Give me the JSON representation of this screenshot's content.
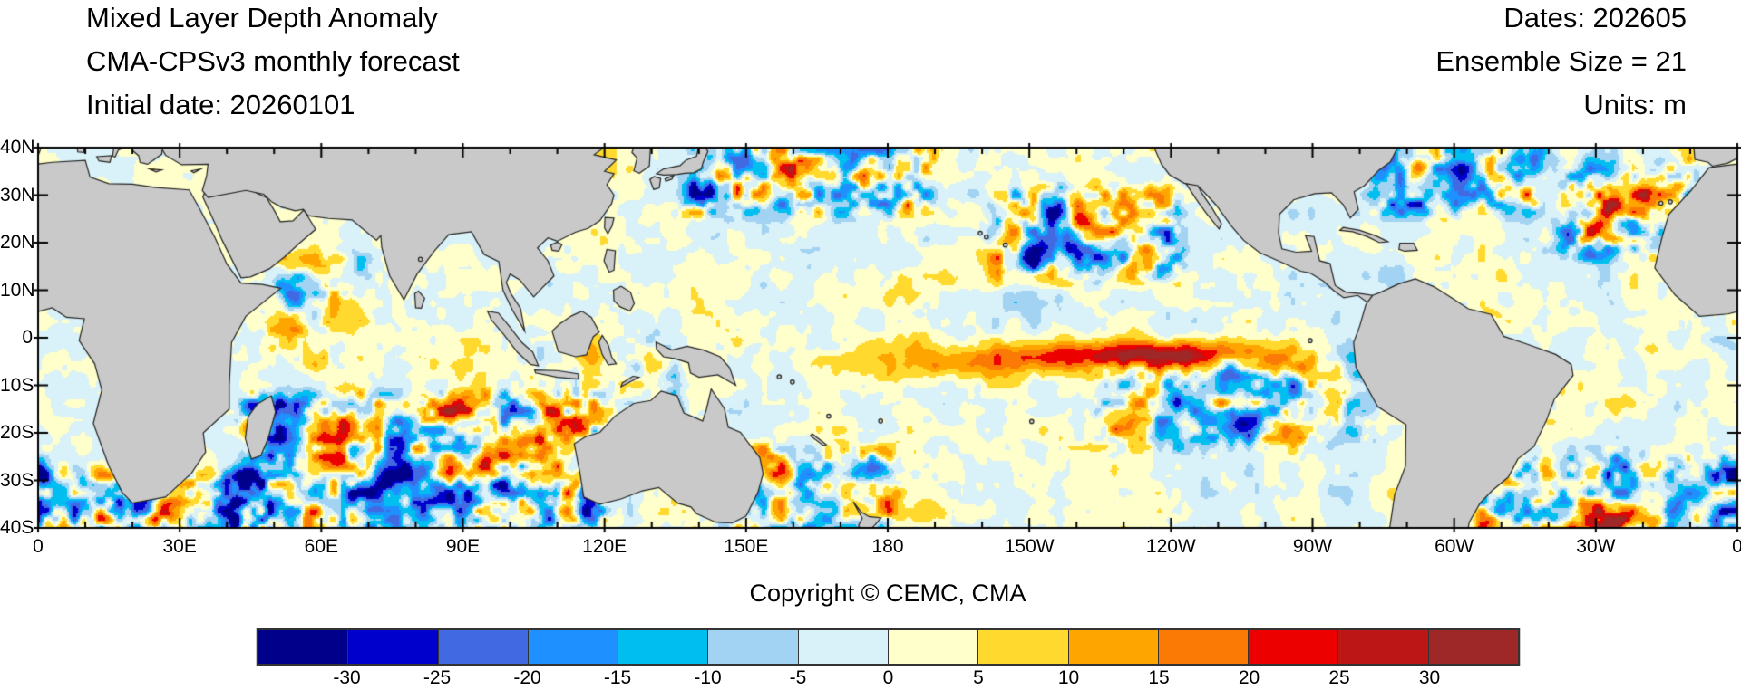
{
  "header": {
    "title": "Mixed Layer Depth Anomaly",
    "subtitle": "CMA-CPSv3 monthly forecast",
    "initial_date": "Initial date: 20260101",
    "dates": "Dates: 202605",
    "ensemble": "Ensemble Size = 21",
    "units": "Units: m"
  },
  "copyright": "Copyright © CEMC, CMA",
  "axes": {
    "lat_labels": [
      "40N",
      "30N",
      "20N",
      "10N",
      "0",
      "10S",
      "20S",
      "30S",
      "40S"
    ],
    "lon_labels": [
      "0",
      "30E",
      "60E",
      "90E",
      "120E",
      "150E",
      "180",
      "150W",
      "120W",
      "90W",
      "60W",
      "30W",
      "0"
    ]
  },
  "colorbar": {
    "tick_labels": [
      "-30",
      "-25",
      "-20",
      "-15",
      "-10",
      "-5",
      "0",
      "5",
      "10",
      "15",
      "20",
      "25",
      "30"
    ],
    "colors": [
      "#00008B",
      "#0000CC",
      "#4169E1",
      "#1E90FF",
      "#00BFF0",
      "#A3D3F2",
      "#D9F1F8",
      "#FFFFCC",
      "#FFD92E",
      "#FFA500",
      "#FA7A05",
      "#EC0000",
      "#BC1616",
      "#9E2828"
    ]
  },
  "map": {
    "land_color": "#C9C9C9",
    "coast_color": "#222222"
  },
  "chart_data": {
    "type": "heatmap",
    "title": "Mixed Layer Depth Anomaly",
    "model": "CMA-CPSv3 monthly forecast",
    "initial_date": "20260101",
    "forecast_month": "202605",
    "ensemble_size": 21,
    "units": "m",
    "projection": "equirectangular world ocean map, longitude 0-360 starting at Greenwich",
    "lon_ticks_deg": [
      0,
      30,
      60,
      90,
      120,
      150,
      180,
      210,
      240,
      270,
      300,
      330,
      360
    ],
    "lat_ticks_deg": [
      40,
      30,
      20,
      10,
      0,
      -10,
      -20,
      -30,
      -40
    ],
    "lat_range": [
      -40,
      40
    ],
    "colorbar_levels": [
      -30,
      -25,
      -20,
      -15,
      -10,
      -5,
      0,
      5,
      10,
      15,
      20,
      25,
      30
    ],
    "notable_features": [
      "Positive (yellow/orange/red) anomaly band along the equatorial central-eastern Pacific (~180 to 95W, peak +15 to +25 m near 140W-115W, 2S-5S)",
      "Strong mesoscale eddy anomalies (about +/-20 to 35 m) in the South Indian Ocean, Agulhas region, Kuroshio extension, subtropical North Atlantic, Brazil-Malvinas region and Tasman Sea",
      "Deep negative (dark blue) anomalies northeast of Hawaii (~150W-125W, 15N-30N) and in the southeast tropical Pacific (~130W-105W, 10S-20S)",
      "Weak anomalies within +/-5 m (pale blue / cream) over most of the remaining ocean; land masked in gray"
    ]
  }
}
